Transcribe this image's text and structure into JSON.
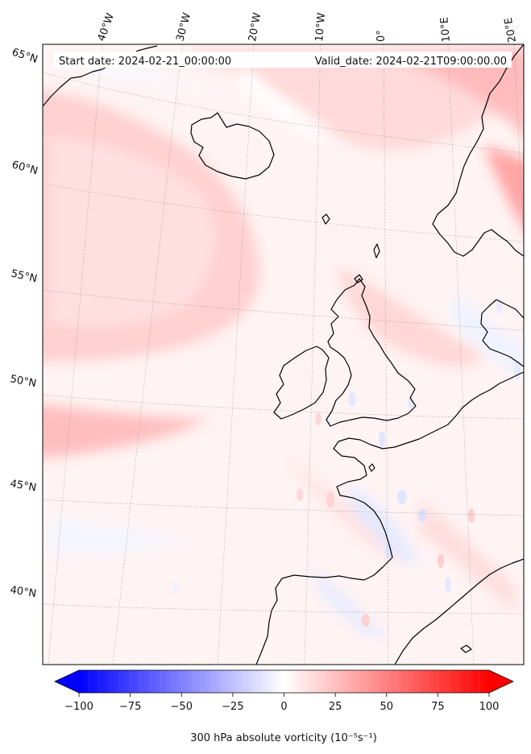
{
  "header": {
    "start_date_label": "Start date: 2024-02-21_00:00:00",
    "valid_date_label": "Valid_date: 2024-02-21T09:00:00.00"
  },
  "map": {
    "longitude_labels": [
      "40°W",
      "30°W",
      "20°W",
      "10°W",
      "0°",
      "10°E",
      "20°E"
    ],
    "latitude_labels": [
      "65°N",
      "60°N",
      "55°N",
      "50°N",
      "45°N",
      "40°N"
    ],
    "field": "300 hPa absolute vorticity",
    "colormap": "bwr",
    "colors": {
      "min": "#0000ff",
      "mid": "#ffffff",
      "max": "#ff0000"
    }
  },
  "colorbar": {
    "ticks": [
      "−100",
      "−75",
      "−50",
      "−25",
      "0",
      "25",
      "50",
      "75",
      "100"
    ],
    "range": [
      -100,
      100
    ],
    "levels": 41,
    "extend": "both",
    "label": "300 hPa absolute vorticity (10⁻⁵s⁻¹)"
  }
}
